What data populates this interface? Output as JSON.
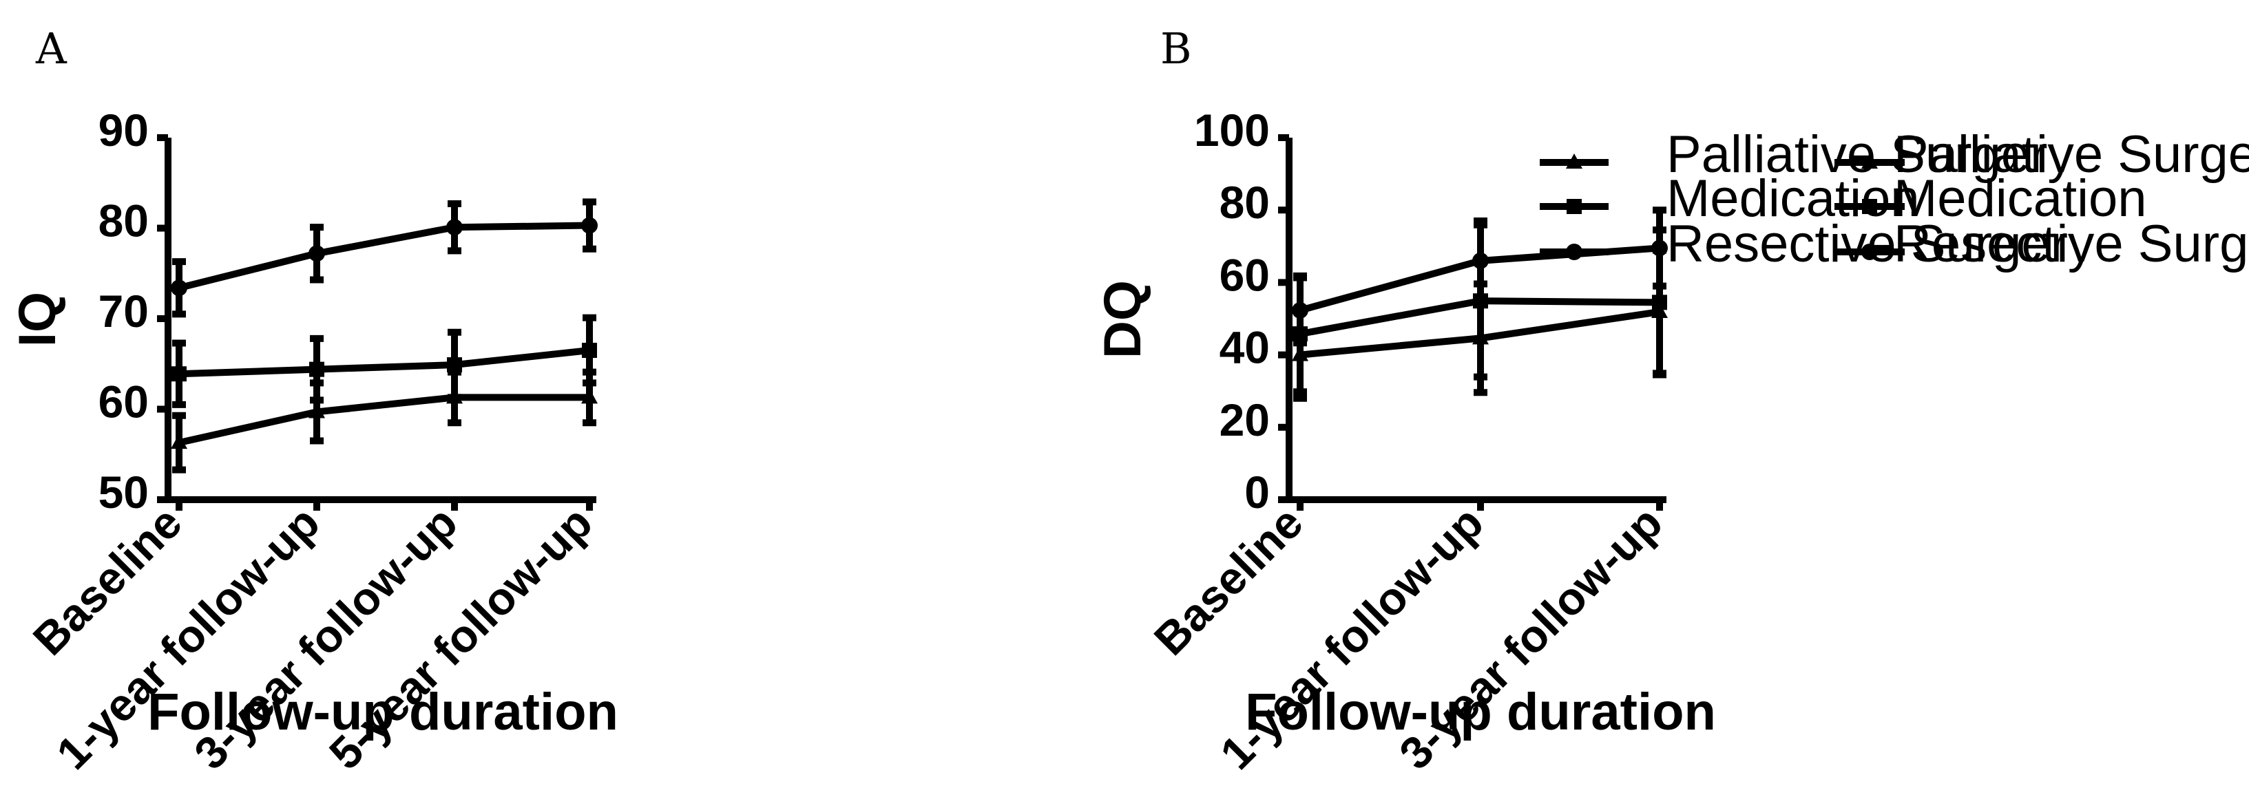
{
  "chart_data": [
    {
      "panel": "A",
      "type": "line",
      "title": "",
      "xlabel": "Follow-up duration",
      "ylabel": "IQ",
      "ylim": [
        50,
        90
      ],
      "yticks": [
        50,
        60,
        70,
        80,
        90
      ],
      "categories": [
        "Baseline",
        "1-year follow-up",
        "3-year follow-up",
        "5-year follow-up"
      ],
      "series": [
        {
          "name": "Palliative Surgery",
          "marker": "triangle",
          "values": [
            56.3,
            59.7,
            61.3,
            61.3
          ],
          "error": [
            3.0,
            3.2,
            2.8,
            2.8
          ]
        },
        {
          "name": "Medication",
          "marker": "square",
          "values": [
            63.9,
            64.4,
            64.9,
            66.5
          ],
          "error": [
            3.4,
            3.4,
            3.6,
            3.6
          ]
        },
        {
          "name": "Resective Surgery",
          "marker": "circle",
          "values": [
            73.4,
            77.2,
            80.1,
            80.3
          ],
          "error": [
            2.9,
            2.9,
            2.6,
            2.6
          ]
        }
      ],
      "legend_position": "right"
    },
    {
      "panel": "B",
      "type": "line",
      "title": "",
      "xlabel": "Follow-up duration",
      "ylabel": "DQ",
      "ylim": [
        0,
        100
      ],
      "yticks": [
        0,
        20,
        40,
        60,
        80,
        100
      ],
      "categories": [
        "Baseline",
        "1-year follow-up",
        "3-year follow-up"
      ],
      "series": [
        {
          "name": "Palliative Surgery",
          "marker": "triangle",
          "values": [
            40.0,
            44.6,
            51.9
          ],
          "error": [
            12.0,
            15.0,
            17.0
          ]
        },
        {
          "name": "Medication",
          "marker": "square",
          "values": [
            45.8,
            54.9,
            54.5
          ],
          "error": [
            16.0,
            21.0,
            20.0
          ]
        },
        {
          "name": "Resective Surgery",
          "marker": "circle",
          "values": [
            52.3,
            66.0,
            69.5
          ],
          "error": [
            9.0,
            11.0,
            10.5
          ]
        }
      ],
      "legend_position": "right"
    }
  ]
}
